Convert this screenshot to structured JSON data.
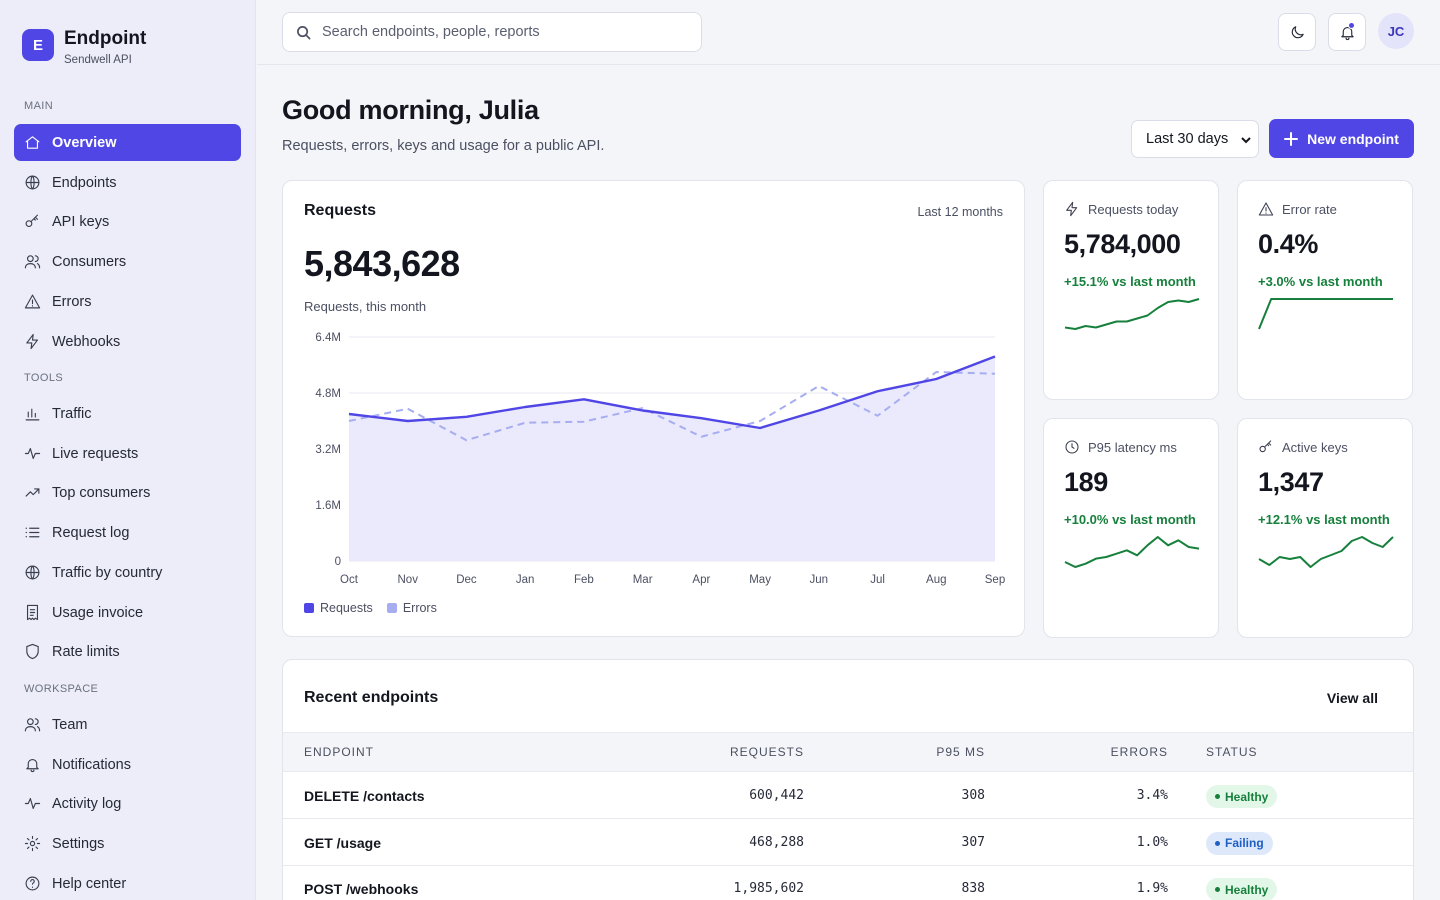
{
  "brand": {
    "logo_letter": "E",
    "name": "Endpoint",
    "sub": "Sendwell API"
  },
  "sidebar": {
    "sections": [
      {
        "title": "MAIN",
        "items": [
          {
            "label": "Overview",
            "icon": "home-icon",
            "active": true
          },
          {
            "label": "Endpoints",
            "icon": "globe-icon"
          },
          {
            "label": "API keys",
            "icon": "key-icon"
          },
          {
            "label": "Consumers",
            "icon": "users-icon"
          },
          {
            "label": "Errors",
            "icon": "warning-icon"
          },
          {
            "label": "Webhooks",
            "icon": "bolt-icon"
          }
        ]
      },
      {
        "title": "TOOLS",
        "items": [
          {
            "label": "Traffic",
            "icon": "bar-chart-icon"
          },
          {
            "label": "Live requests",
            "icon": "pulse-icon"
          },
          {
            "label": "Top consumers",
            "icon": "trending-up-icon"
          },
          {
            "label": "Request log",
            "icon": "list-icon"
          },
          {
            "label": "Traffic by country",
            "icon": "globe-icon"
          },
          {
            "label": "Usage invoice",
            "icon": "receipt-icon"
          },
          {
            "label": "Rate limits",
            "icon": "shield-icon"
          }
        ]
      },
      {
        "title": "WORKSPACE",
        "items": [
          {
            "label": "Team",
            "icon": "users-icon"
          },
          {
            "label": "Notifications",
            "icon": "bell-icon"
          },
          {
            "label": "Activity log",
            "icon": "pulse-icon"
          },
          {
            "label": "Settings",
            "icon": "gear-icon"
          },
          {
            "label": "Help center",
            "icon": "help-icon"
          }
        ]
      }
    ]
  },
  "topbar": {
    "search_placeholder": "Search endpoints, people, reports",
    "avatar_initials": "JC"
  },
  "header": {
    "greeting": "Good morning, Julia",
    "subtitle": "Requests, errors, keys and usage for a public API.",
    "range": "Last 30 days",
    "new_button": "New endpoint"
  },
  "requests_card": {
    "title": "Requests",
    "range": "Last 12 months",
    "value": "5,843,628",
    "caption": "Requests, this month"
  },
  "chart_data": {
    "type": "line",
    "categories": [
      "Oct",
      "Nov",
      "Dec",
      "Jan",
      "Feb",
      "Mar",
      "Apr",
      "May",
      "Jun",
      "Jul",
      "Aug",
      "Sep"
    ],
    "series": [
      {
        "name": "Requests",
        "values": [
          4200000,
          4000000,
          4120000,
          4400000,
          4620000,
          4300000,
          4080000,
          3800000,
          4300000,
          4850000,
          5200000,
          5843628
        ],
        "color": "#5046e5"
      },
      {
        "name": "Errors",
        "values": [
          4000000,
          4350000,
          3450000,
          3950000,
          3980000,
          4370000,
          3550000,
          4000000,
          5000000,
          4150000,
          5400000,
          5350000
        ],
        "color": "#a6adf0",
        "dashed": true
      }
    ],
    "y_ticks": [
      "0",
      "1.6M",
      "3.2M",
      "4.8M",
      "6.4M"
    ],
    "ylim": [
      0,
      6400000
    ],
    "grid": true,
    "legend": "bottom-left",
    "area_under": "Requests"
  },
  "stats": [
    {
      "label": "Requests today",
      "icon": "bolt-icon",
      "value": "5,784,000",
      "delta": "+15.1% vs last month",
      "spark": [
        3,
        2,
        4,
        3,
        5,
        7,
        7,
        9,
        11,
        16,
        20,
        21,
        20,
        22
      ]
    },
    {
      "label": "Error rate",
      "icon": "warning-icon",
      "value": "0.4%",
      "delta": "+3.0% vs last month",
      "spark": [
        0,
        22,
        22,
        22,
        22,
        22,
        22,
        22,
        22,
        22,
        22,
        22
      ]
    },
    {
      "label": "P95 latency ms",
      "icon": "clock-icon",
      "value": "189",
      "delta": "+10.0% vs last month",
      "spark": [
        6,
        3,
        5,
        8,
        9,
        11,
        13,
        10,
        16,
        21,
        16,
        19,
        15,
        14
      ]
    },
    {
      "label": "Active keys",
      "icon": "key-icon",
      "value": "1,347",
      "delta": "+12.1% vs last month",
      "spark": [
        8,
        5,
        9,
        8,
        9,
        4,
        8,
        10,
        12,
        17,
        19,
        16,
        14,
        19
      ]
    }
  ],
  "table": {
    "title": "Recent endpoints",
    "view_all": "View all",
    "columns": [
      "ENDPOINT",
      "REQUESTS",
      "P95 MS",
      "ERRORS",
      "STATUS"
    ],
    "rows": [
      {
        "endpoint": "DELETE /contacts",
        "requests": "600,442",
        "p95": "308",
        "errors": "3.4%",
        "status": "Healthy"
      },
      {
        "endpoint": "GET /usage",
        "requests": "468,288",
        "p95": "307",
        "errors": "1.0%",
        "status": "Failing"
      },
      {
        "endpoint": "POST /webhooks",
        "requests": "1,985,602",
        "p95": "838",
        "errors": "1.9%",
        "status": "Healthy"
      }
    ],
    "status_colors": {
      "Healthy": {
        "bg": "#e3f7e8",
        "fg": "#16803c"
      },
      "Failing": {
        "bg": "#dde9fb",
        "fg": "#1f5fc4"
      }
    }
  }
}
